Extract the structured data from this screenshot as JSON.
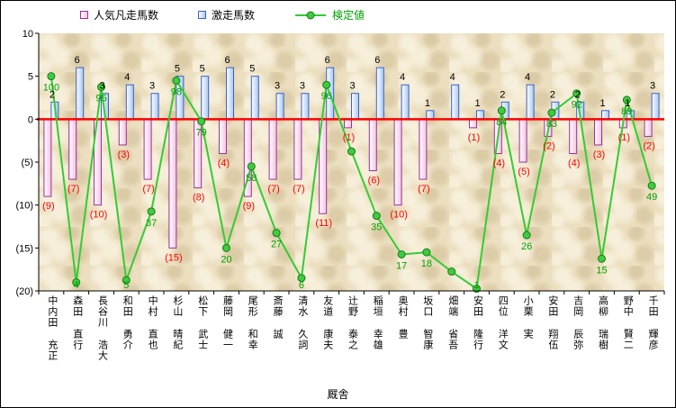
{
  "legend": {
    "items": [
      {
        "label": "人気凡走馬数",
        "series": "flop",
        "swatch": "pink-bar"
      },
      {
        "label": "激走馬数",
        "series": "surge",
        "swatch": "blue-bar"
      },
      {
        "label": "検定値",
        "series": "kentei",
        "swatch": "green-line-marker"
      }
    ]
  },
  "axes": {
    "x_title": "厩舎",
    "y_tick_labels": [
      "10",
      "5",
      "0",
      "(5)",
      "(10)",
      "(15)",
      "(20)"
    ]
  },
  "colors": {
    "flop_bar_border": "#993399",
    "flop_bar_fill": "#f2c2e2",
    "surge_bar_border": "#3a62c8",
    "surge_bar_fill": "#a8c8ee",
    "line": "#33cc33",
    "marker_fill": "#3ecb3e",
    "marker_border": "#1a7a1a",
    "zero_line": "#ff0000",
    "surge_label": "#000000",
    "flop_label": "#ff0000",
    "line_label": "#00a000",
    "plot_background": "#ecdfc0"
  },
  "chart_data": {
    "type": "bar",
    "subtype": "combo-bar-line",
    "title": "",
    "x_axis_title": "厩舎",
    "legend_position": "top",
    "grid": false,
    "categories": [
      "中内田 充正",
      "森田 直行",
      "長谷川 浩大",
      "和田 勇介",
      "中村 直也",
      "杉山 晴紀",
      "松下 武士",
      "藤岡 健一",
      "尾形 和幸",
      "斎藤 誠",
      "清水 久詞",
      "友道 康夫",
      "辻野 泰之",
      "稲垣 幸雄",
      "奥村 豊",
      "坂口 智康",
      "畑端 省吾",
      "安田 隆行",
      "四位 洋文",
      "小栗 実",
      "安田 翔伍",
      "吉岡 辰弥",
      "高柳 瑞樹",
      "野中 賢二",
      "千田 輝彦"
    ],
    "y_axis": {
      "min": -20,
      "max": 10,
      "ticks": [
        10,
        5,
        0,
        -5,
        -10,
        -15,
        -20
      ],
      "tick_labels": [
        "10",
        "5",
        "0",
        "(5)",
        "(10)",
        "(15)",
        "(20)"
      ]
    },
    "series": [
      {
        "name": "人気凡走馬数",
        "type": "bar",
        "direction": "down",
        "values": [
          9,
          7,
          10,
          3,
          7,
          15,
          8,
          4,
          9,
          7,
          7,
          11,
          1,
          6,
          10,
          7,
          0,
          1,
          4,
          5,
          2,
          4,
          3,
          1,
          2
        ],
        "data_labels": [
          "(9)",
          "(7)",
          "(10)",
          "(3)",
          "(7)",
          "(15)",
          "(8)",
          "(4)",
          "(9)",
          "(7)",
          "(7)",
          "(11)",
          "(1)",
          "(6)",
          "(10)",
          "(7)",
          "",
          "(1)",
          "(4)",
          "(5)",
          "(2)",
          "(4)",
          "(3)",
          "(1)",
          "(2)"
        ]
      },
      {
        "name": "激走馬数",
        "type": "bar",
        "direction": "up",
        "values": [
          2,
          6,
          3,
          4,
          3,
          5,
          5,
          6,
          5,
          3,
          3,
          6,
          3,
          6,
          4,
          1,
          4,
          1,
          2,
          4,
          2,
          2,
          1,
          1,
          3
        ],
        "data_labels": [
          "2",
          "6",
          "3",
          "4",
          "3",
          "5",
          "5",
          "6",
          "5",
          "3",
          "3",
          "6",
          "3",
          "6",
          "4",
          "1",
          "4",
          "1",
          "2",
          "4",
          "2",
          "2",
          "1",
          "1",
          "3"
        ]
      },
      {
        "name": "検定値",
        "type": "line",
        "values": [
          100,
          4,
          95,
          5,
          37,
          98,
          79,
          20,
          58,
          27,
          6,
          96,
          65,
          35,
          17,
          18,
          9,
          1,
          84,
          26,
          83,
          92,
          15,
          89,
          49
        ],
        "data_labels": [
          "100",
          "4",
          "95",
          "5",
          "37",
          "98",
          "79",
          "20",
          "58",
          "27",
          "6",
          "96",
          "",
          "35",
          "17",
          "18",
          "",
          "1",
          "84",
          "26",
          "83",
          "92",
          "15",
          "89",
          "49"
        ],
        "scale": {
          "divisor": 4,
          "offset": -20
        },
        "note": "line values plotted on left axis as value/4-20"
      }
    ],
    "zero_line": true
  }
}
